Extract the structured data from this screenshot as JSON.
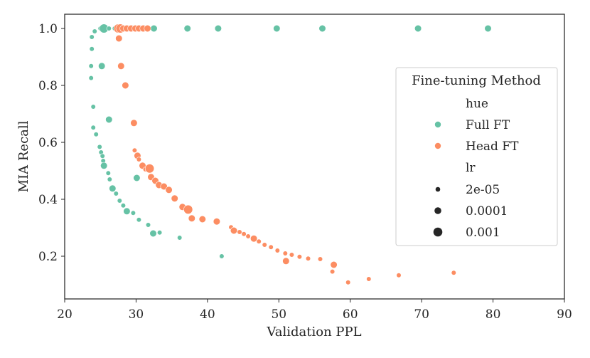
{
  "chart_data": {
    "type": "scatter",
    "xlabel": "Validation PPL",
    "ylabel": "MIA Recall",
    "xlim": [
      20,
      90
    ],
    "ylim": [
      0.05,
      1.05
    ],
    "xticks": [
      "20",
      "30",
      "40",
      "50",
      "60",
      "70",
      "80",
      "90"
    ],
    "yticks": [
      "0.2",
      "0.4",
      "0.6",
      "0.8",
      "1.0"
    ],
    "grid": false,
    "legend": {
      "placement": "right",
      "title": "Fine-tuning Method",
      "hue_header": "hue",
      "size_header": "lr",
      "size_labels": [
        "2e-05",
        "0.0001",
        "0.001"
      ]
    },
    "colors": {
      "Full FT": "#66c2a5",
      "Head FT": "#fc8d62"
    },
    "series": [
      {
        "name": "Full FT",
        "points": [
          [
            23.8,
            0.97,
            "2e-05"
          ],
          [
            24.2,
            0.99,
            "2e-05"
          ],
          [
            25.0,
            1.0,
            "2e-05"
          ],
          [
            25.5,
            1.0,
            "0.001"
          ],
          [
            26.2,
            1.0,
            "2e-05"
          ],
          [
            27.0,
            1.0,
            "2e-05"
          ],
          [
            32.5,
            1.0,
            "0.0001"
          ],
          [
            37.2,
            1.0,
            "0.0001"
          ],
          [
            41.5,
            1.0,
            "0.0001"
          ],
          [
            49.7,
            1.0,
            "0.0001"
          ],
          [
            56.1,
            1.0,
            "0.0001"
          ],
          [
            69.5,
            1.0,
            "0.0001"
          ],
          [
            79.3,
            1.0,
            "0.0001"
          ],
          [
            23.8,
            0.928,
            "2e-05"
          ],
          [
            23.7,
            0.868,
            "2e-05"
          ],
          [
            25.2,
            0.868,
            "0.0001"
          ],
          [
            23.7,
            0.826,
            "2e-05"
          ],
          [
            24.0,
            0.725,
            "2e-05"
          ],
          [
            26.2,
            0.68,
            "0.0001"
          ],
          [
            24.0,
            0.652,
            "2e-05"
          ],
          [
            24.4,
            0.628,
            "2e-05"
          ],
          [
            24.9,
            0.584,
            "2e-05"
          ],
          [
            25.1,
            0.565,
            "2e-05"
          ],
          [
            25.3,
            0.552,
            "2e-05"
          ],
          [
            25.4,
            0.535,
            "2e-05"
          ],
          [
            25.5,
            0.518,
            "0.0001"
          ],
          [
            26.1,
            0.492,
            "2e-05"
          ],
          [
            26.3,
            0.47,
            "2e-05"
          ],
          [
            26.7,
            0.438,
            "0.0001"
          ],
          [
            27.2,
            0.42,
            "2e-05"
          ],
          [
            27.7,
            0.395,
            "2e-05"
          ],
          [
            28.2,
            0.378,
            "2e-05"
          ],
          [
            28.7,
            0.358,
            "0.0001"
          ],
          [
            29.6,
            0.352,
            "2e-05"
          ],
          [
            30.4,
            0.328,
            "2e-05"
          ],
          [
            30.1,
            0.475,
            "0.0001"
          ],
          [
            31.7,
            0.31,
            "2e-05"
          ],
          [
            32.4,
            0.28,
            "0.0001"
          ],
          [
            33.3,
            0.283,
            "2e-05"
          ],
          [
            36.1,
            0.265,
            "2e-05"
          ],
          [
            42.0,
            0.2,
            "2e-05"
          ]
        ]
      },
      {
        "name": "Head FT",
        "points": [
          [
            27.5,
            1.0,
            "0.001"
          ],
          [
            27.8,
            1.0,
            "0.001"
          ],
          [
            28.2,
            1.0,
            "0.0001"
          ],
          [
            28.7,
            1.0,
            "0.0001"
          ],
          [
            29.3,
            1.0,
            "0.0001"
          ],
          [
            29.9,
            1.0,
            "0.0001"
          ],
          [
            30.4,
            1.0,
            "0.0001"
          ],
          [
            31.0,
            1.0,
            "0.0001"
          ],
          [
            31.6,
            1.0,
            "0.0001"
          ],
          [
            27.6,
            0.965,
            "0.0001"
          ],
          [
            27.9,
            0.868,
            "0.0001"
          ],
          [
            28.5,
            0.8,
            "0.0001"
          ],
          [
            29.7,
            0.668,
            "0.0001"
          ],
          [
            29.8,
            0.572,
            "2e-05"
          ],
          [
            30.2,
            0.553,
            "0.0001"
          ],
          [
            30.4,
            0.54,
            "2e-05"
          ],
          [
            30.9,
            0.518,
            "0.0001"
          ],
          [
            31.3,
            0.505,
            "2e-05"
          ],
          [
            31.9,
            0.508,
            "0.001"
          ],
          [
            32.1,
            0.478,
            "0.0001"
          ],
          [
            32.7,
            0.465,
            "0.0001"
          ],
          [
            33.2,
            0.45,
            "0.0001"
          ],
          [
            33.9,
            0.445,
            "0.0001"
          ],
          [
            34.6,
            0.433,
            "0.0001"
          ],
          [
            35.4,
            0.403,
            "0.0001"
          ],
          [
            36.5,
            0.373,
            "0.0001"
          ],
          [
            37.3,
            0.364,
            "0.001"
          ],
          [
            37.8,
            0.333,
            "0.0001"
          ],
          [
            39.3,
            0.33,
            "0.0001"
          ],
          [
            41.3,
            0.322,
            "0.0001"
          ],
          [
            43.3,
            0.302,
            "2e-05"
          ],
          [
            43.7,
            0.29,
            "0.0001"
          ],
          [
            44.5,
            0.285,
            "2e-05"
          ],
          [
            45.1,
            0.278,
            "2e-05"
          ],
          [
            45.7,
            0.27,
            "2e-05"
          ],
          [
            46.5,
            0.262,
            "0.0001"
          ],
          [
            47.2,
            0.252,
            "2e-05"
          ],
          [
            48.0,
            0.24,
            "2e-05"
          ],
          [
            48.9,
            0.232,
            "2e-05"
          ],
          [
            49.8,
            0.22,
            "2e-05"
          ],
          [
            50.9,
            0.21,
            "2e-05"
          ],
          [
            51.8,
            0.205,
            "2e-05"
          ],
          [
            52.9,
            0.198,
            "2e-05"
          ],
          [
            54.1,
            0.192,
            "2e-05"
          ],
          [
            55.8,
            0.19,
            "2e-05"
          ],
          [
            51.0,
            0.183,
            "0.0001"
          ],
          [
            57.7,
            0.17,
            "0.0001"
          ],
          [
            57.5,
            0.146,
            "2e-05"
          ],
          [
            59.7,
            0.108,
            "2e-05"
          ],
          [
            62.6,
            0.12,
            "2e-05"
          ],
          [
            66.8,
            0.133,
            "2e-05"
          ],
          [
            74.5,
            0.142,
            "2e-05"
          ]
        ]
      }
    ]
  }
}
